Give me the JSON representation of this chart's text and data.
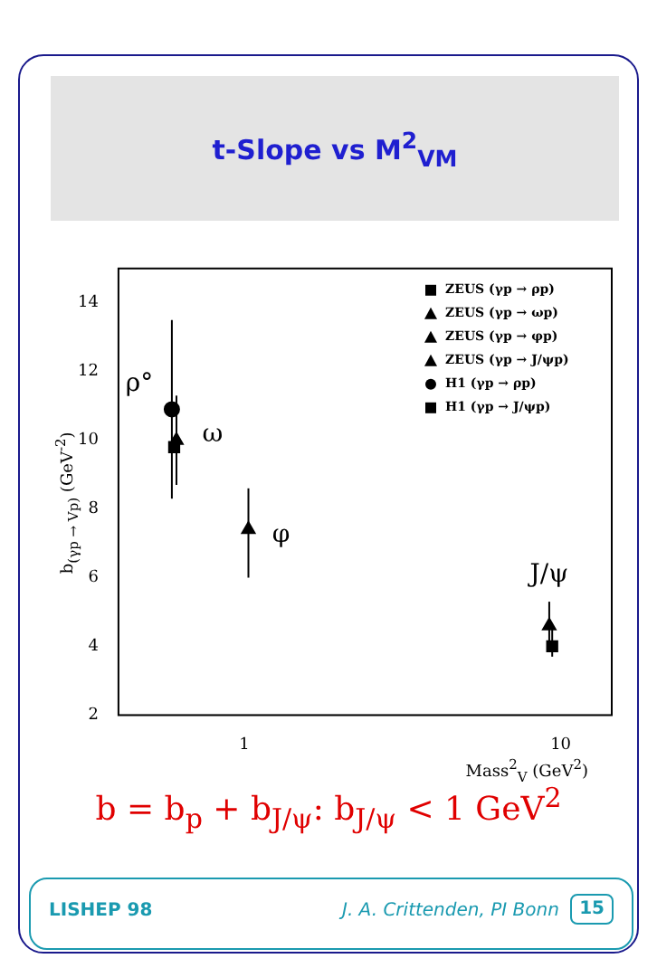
{
  "chart_data": {
    "type": "scatter",
    "title": "t-Slope vs M$^{2}$$_{VM}$",
    "xlabel": "Mass$^{2}$$_{V}$ (GeV$^{2}$)",
    "ylabel": "b$_{(γp → Vp)}$ (GeV$^{-2}$)",
    "log": "x",
    "xlim": [
      0.4,
      14.5
    ],
    "xticks": [
      1,
      10
    ],
    "ylim": [
      2,
      15
    ],
    "yticks": [
      2,
      4,
      6,
      8,
      10,
      12,
      14
    ],
    "grid": false,
    "legend": "top right",
    "series": [
      {
        "name": "ZEUS (γp → ρp)",
        "color": "#000000",
        "marker": "square",
        "x": [
          0.6
        ],
        "values": [
          9.8
        ]
      },
      {
        "name": "ZEUS (γp → ωp)",
        "color": "#000000",
        "marker": "triangle",
        "x": [
          0.61
        ],
        "values": [
          10.0
        ],
        "errors": [
          [
            8.7,
            11.3
          ]
        ]
      },
      {
        "name": "ZEUS (γp → φp)",
        "color": "#000000",
        "marker": "triangle",
        "x": [
          1.03
        ],
        "values": [
          7.4
        ],
        "errors": [
          [
            6.0,
            8.6
          ]
        ]
      },
      {
        "name": "ZEUS (γp → J/ψp)",
        "color": "#000000",
        "marker": "triangle",
        "x": [
          9.2
        ],
        "values": [
          4.6
        ],
        "errors": [
          [
            3.9,
            5.3
          ]
        ]
      },
      {
        "name": "H1 (γp → ρp)",
        "color": "#000000",
        "marker": "circle",
        "x": [
          0.59
        ],
        "values": [
          10.9
        ],
        "errors": [
          [
            8.3,
            13.5
          ]
        ]
      },
      {
        "name": "H1 (γp → J/ψp)",
        "color": "#000000",
        "marker": "square",
        "x": [
          9.4
        ],
        "values": [
          4.0
        ],
        "errors": [
          [
            3.7,
            4.5
          ]
        ]
      }
    ],
    "annotations": [
      {
        "text": "ρ°",
        "x": 0.59,
        "y": 10.9
      },
      {
        "text": "ω",
        "x": 0.61,
        "y": 10.0
      },
      {
        "text": "φ",
        "x": 1.03,
        "y": 7.4
      },
      {
        "text": "J/ψ",
        "x": 9.2,
        "y": 4.6
      },
      "b = b$_{p}$ + b$_{J/ψ}$:   b$_{J/ψ}$ < 1 GeV$^{2}$",
      "LISHEP 98",
      "J. A. Crittenden, PI Bonn",
      "15"
    ]
  }
}
